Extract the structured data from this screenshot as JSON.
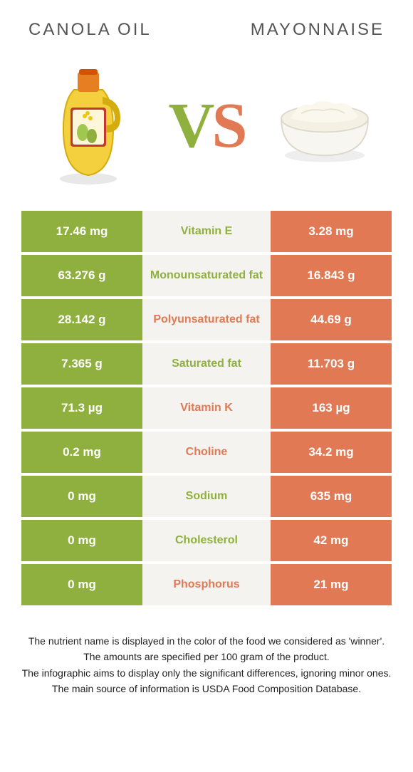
{
  "header": {
    "left_title": "CANOLA OIL",
    "right_title": "MAYONNAISE"
  },
  "vs": {
    "v": "V",
    "s": "S"
  },
  "colors": {
    "left": "#8fb03e",
    "right": "#e17a54",
    "mid_bg": "#f4f3ef"
  },
  "table": {
    "rows": [
      {
        "left": "17.46 mg",
        "label": "Vitamin E",
        "winner": "left",
        "right": "3.28 mg"
      },
      {
        "left": "63.276 g",
        "label": "Monounsaturated fat",
        "winner": "left",
        "right": "16.843 g"
      },
      {
        "left": "28.142 g",
        "label": "Polyunsaturated fat",
        "winner": "right",
        "right": "44.69 g"
      },
      {
        "left": "7.365 g",
        "label": "Saturated fat",
        "winner": "left",
        "right": "11.703 g"
      },
      {
        "left": "71.3 µg",
        "label": "Vitamin K",
        "winner": "right",
        "right": "163 µg"
      },
      {
        "left": "0.2 mg",
        "label": "Choline",
        "winner": "right",
        "right": "34.2 mg"
      },
      {
        "left": "0 mg",
        "label": "Sodium",
        "winner": "left",
        "right": "635 mg"
      },
      {
        "left": "0 mg",
        "label": "Cholesterol",
        "winner": "left",
        "right": "42 mg"
      },
      {
        "left": "0 mg",
        "label": "Phosphorus",
        "winner": "right",
        "right": "21 mg"
      }
    ]
  },
  "footer": {
    "line1": "The nutrient name is displayed in the color of the food we considered as 'winner'.",
    "line2": "The amounts are specified per 100 gram of the product.",
    "line3": "The infographic aims to display only the significant differences, ignoring minor ones.",
    "line4": "The main source of information is USDA Food Composition Database."
  }
}
